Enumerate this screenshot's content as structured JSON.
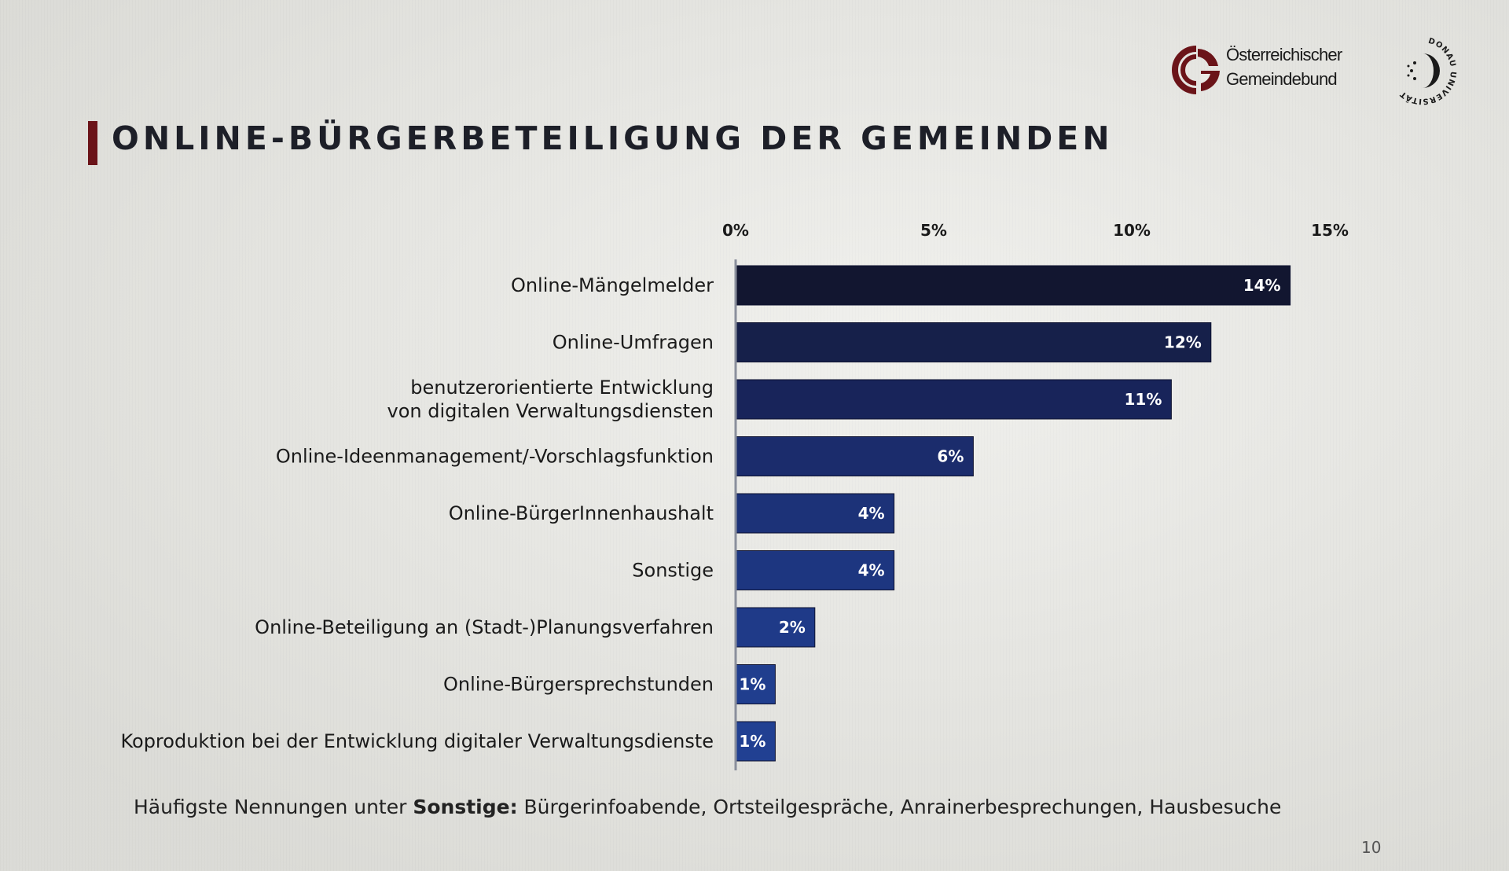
{
  "slide": {
    "title": "ONLINE-BÜRGERBETEILIGUNG DER GEMEINDEN",
    "logo_gemeindebund": {
      "line1": "Österreichischer",
      "line2": "Gemeindebund",
      "icon": "gemeindebund-logo",
      "color": "#6b1419"
    },
    "logo_donau": {
      "text": "DONAU UNIVERSITÄT",
      "icon": "donau-universitaet-logo"
    },
    "footnote": {
      "prefix": "Häufigste Nennungen unter ",
      "bold": "Sonstige:",
      "suffix": " Bürgerinfoabende, Ortsteilgespräche, Anrainerbesprechungen, Hausbesuche"
    },
    "page_number": "10"
  },
  "chart_data": {
    "type": "bar",
    "orientation": "horizontal",
    "xlim": [
      0,
      15
    ],
    "xticks": [
      0,
      5,
      10,
      15
    ],
    "xtick_labels": [
      "0%",
      "5%",
      "10%",
      "15%"
    ],
    "grid": false,
    "categories": [
      "Online-Mängelmelder",
      "Online-Umfragen",
      "benutzerorientierte Entwicklung\nvon digitalen Verwaltungsdiensten",
      "Online-Ideenmanagement/-Vorschlagsfunktion",
      "Online-BürgerInnenhaushalt",
      "Sonstige",
      "Online-Beteiligung an (Stadt-)Planungsverfahren",
      "Online-Bürgersprechstunden",
      "Koproduktion bei der Entwicklung digitaler Verwaltungsdienste"
    ],
    "values": [
      14,
      12,
      11,
      6,
      4,
      4,
      2,
      1,
      1
    ],
    "value_labels": [
      "14%",
      "12%",
      "11%",
      "6%",
      "4%",
      "4%",
      "2%",
      "1%",
      "1%"
    ],
    "bar_colors": [
      "#121630",
      "#16204a",
      "#18245a",
      "#1b2c6c",
      "#1c3278",
      "#1d3680",
      "#1f3a88",
      "#203e8e",
      "#214092"
    ],
    "axis_color": "#8a8f9c"
  }
}
